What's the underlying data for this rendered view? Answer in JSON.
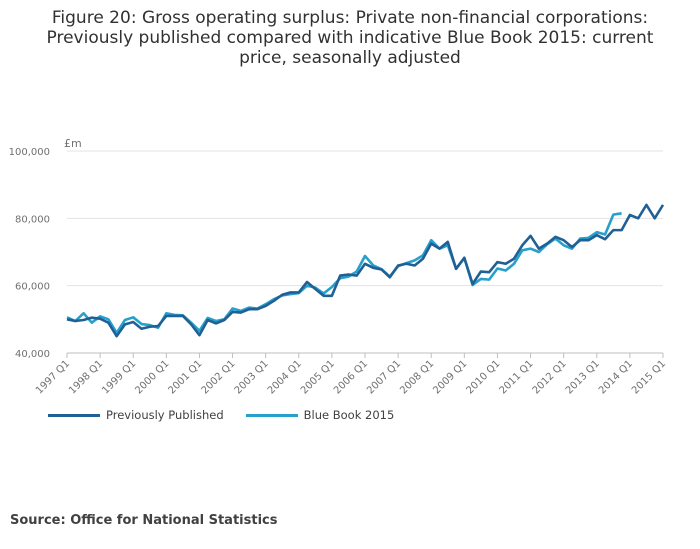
{
  "title_lines": [
    "Figure 20: Gross operating surplus: Private non-financial corporations:",
    "Previously published compared with indicative Blue Book 2015: current",
    "price, seasonally adjusted"
  ],
  "source": "Source: Office for National Statistics",
  "chart_data": {
    "type": "line",
    "title": "Figure 20: Gross operating surplus: Private non-financial corporations: Previously published compared with indicative Blue Book 2015: current price, seasonally adjusted",
    "ylabel": "£m",
    "xlabel": "",
    "ylim": [
      40000,
      100000
    ],
    "yticks": [
      40000,
      60000,
      80000,
      100000
    ],
    "ytick_labels": [
      "40,000",
      "60,000",
      "80,000",
      "100,000"
    ],
    "xtick_labels": [
      "1997 Q1",
      "1998 Q1",
      "1999 Q1",
      "2000 Q1",
      "2001 Q1",
      "2002 Q1",
      "2003 Q1",
      "2004 Q1",
      "2005 Q1",
      "2006 Q1",
      "2007 Q1",
      "2008 Q1",
      "2009 Q1",
      "2010 Q1",
      "2011 Q1",
      "2012 Q1",
      "2013 Q1",
      "2014 Q1",
      "2015 Q1"
    ],
    "grid": true,
    "legend_position": "bottom-left",
    "series": [
      {
        "name": "Previously Published",
        "color": "#206095",
        "values": [
          50000,
          49500,
          49800,
          50500,
          50200,
          49000,
          45000,
          48500,
          49200,
          47200,
          47800,
          48000,
          51000,
          51000,
          51000,
          48500,
          45300,
          49800,
          48800,
          49800,
          52200,
          52000,
          53000,
          53000,
          54000,
          55500,
          57300,
          58000,
          58000,
          61100,
          59000,
          57000,
          57000,
          63000,
          63300,
          63000,
          66500,
          65300,
          64800,
          62500,
          66000,
          66500,
          66000,
          68000,
          72500,
          71000,
          73000,
          65000,
          68300,
          60500,
          64200,
          64000,
          67000,
          66500,
          68000,
          72000,
          74800,
          71000,
          72500,
          74500,
          73500,
          71500,
          73500,
          73500,
          75000,
          73800,
          76500,
          76500,
          81000,
          80000,
          84000,
          80000,
          84000
        ]
      },
      {
        "name": "Blue Book 2015",
        "color": "#27a0cc",
        "values": [
          50600,
          49500,
          51800,
          49000,
          50900,
          50000,
          46000,
          49800,
          50600,
          48600,
          48300,
          47500,
          51800,
          51300,
          51200,
          49000,
          46600,
          50400,
          49500,
          50000,
          53200,
          52500,
          53500,
          53200,
          54500,
          56000,
          57100,
          57500,
          57800,
          60000,
          59400,
          57700,
          59600,
          62200,
          62700,
          64200,
          68800,
          66000,
          64900,
          62700,
          65800,
          66700,
          67500,
          69000,
          73500,
          71000,
          72000,
          65000,
          68200,
          60200,
          62000,
          61800,
          65100,
          64500,
          66500,
          70500,
          71000,
          70000,
          72300,
          74000,
          72000,
          71000,
          74000,
          74200,
          75900,
          75200,
          81100,
          81500
        ]
      }
    ]
  }
}
